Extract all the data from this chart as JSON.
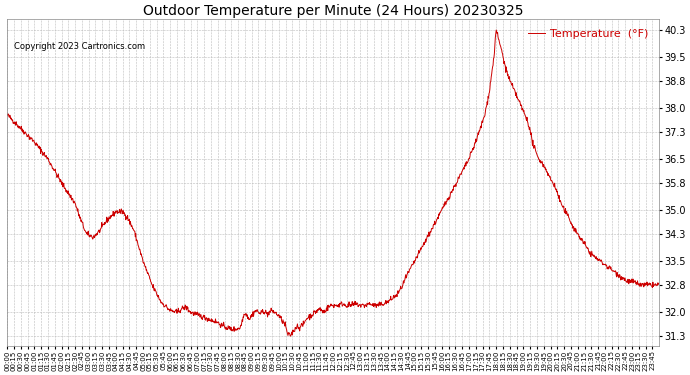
{
  "title": "Outdoor Temperature per Minute (24 Hours) 20230325",
  "copyright": "Copyright 2023 Cartronics.com",
  "legend_label": "Temperature  (°F)",
  "line_color": "#cc0000",
  "background_color": "#ffffff",
  "grid_color": "#bbbbbb",
  "yticks": [
    31.3,
    32.0,
    32.8,
    33.5,
    34.3,
    35.0,
    35.8,
    36.5,
    37.3,
    38.0,
    38.8,
    39.5,
    40.3
  ],
  "ylim": [
    31.0,
    40.6
  ],
  "xtick_interval": 15,
  "total_minutes": 1440,
  "control_points": [
    [
      0,
      37.8
    ],
    [
      30,
      37.4
    ],
    [
      60,
      37.0
    ],
    [
      90,
      36.5
    ],
    [
      120,
      35.8
    ],
    [
      150,
      35.2
    ],
    [
      160,
      34.8
    ],
    [
      175,
      34.3
    ],
    [
      190,
      34.2
    ],
    [
      205,
      34.4
    ],
    [
      220,
      34.7
    ],
    [
      240,
      34.95
    ],
    [
      255,
      34.95
    ],
    [
      265,
      34.8
    ],
    [
      280,
      34.4
    ],
    [
      300,
      33.5
    ],
    [
      320,
      32.8
    ],
    [
      340,
      32.3
    ],
    [
      360,
      32.05
    ],
    [
      375,
      32.0
    ],
    [
      385,
      32.1
    ],
    [
      395,
      32.15
    ],
    [
      405,
      32.0
    ],
    [
      415,
      31.95
    ],
    [
      425,
      31.9
    ],
    [
      435,
      31.85
    ],
    [
      445,
      31.8
    ],
    [
      455,
      31.75
    ],
    [
      465,
      31.7
    ],
    [
      475,
      31.6
    ],
    [
      485,
      31.55
    ],
    [
      495,
      31.5
    ],
    [
      505,
      31.5
    ],
    [
      515,
      31.55
    ],
    [
      520,
      31.8
    ],
    [
      525,
      32.0
    ],
    [
      530,
      31.9
    ],
    [
      535,
      31.8
    ],
    [
      540,
      31.9
    ],
    [
      545,
      32.0
    ],
    [
      550,
      32.05
    ],
    [
      555,
      32.0
    ],
    [
      560,
      31.95
    ],
    [
      565,
      32.05
    ],
    [
      570,
      32.0
    ],
    [
      575,
      31.95
    ],
    [
      580,
      32.0
    ],
    [
      585,
      32.05
    ],
    [
      590,
      32.0
    ],
    [
      595,
      31.95
    ],
    [
      600,
      31.9
    ],
    [
      605,
      31.8
    ],
    [
      610,
      31.7
    ],
    [
      615,
      31.6
    ],
    [
      618,
      31.4
    ],
    [
      620,
      31.35
    ],
    [
      625,
      31.3
    ],
    [
      630,
      31.4
    ],
    [
      635,
      31.5
    ],
    [
      640,
      31.6
    ],
    [
      645,
      31.55
    ],
    [
      650,
      31.6
    ],
    [
      655,
      31.65
    ],
    [
      660,
      31.8
    ],
    [
      665,
      31.85
    ],
    [
      670,
      31.9
    ],
    [
      675,
      31.95
    ],
    [
      680,
      32.0
    ],
    [
      685,
      32.05
    ],
    [
      690,
      32.1
    ],
    [
      695,
      32.05
    ],
    [
      700,
      32.0
    ],
    [
      705,
      32.1
    ],
    [
      710,
      32.15
    ],
    [
      715,
      32.2
    ],
    [
      720,
      32.2
    ],
    [
      730,
      32.2
    ],
    [
      740,
      32.25
    ],
    [
      750,
      32.2
    ],
    [
      760,
      32.2
    ],
    [
      770,
      32.25
    ],
    [
      780,
      32.2
    ],
    [
      790,
      32.2
    ],
    [
      800,
      32.25
    ],
    [
      810,
      32.2
    ],
    [
      820,
      32.2
    ],
    [
      830,
      32.25
    ],
    [
      840,
      32.3
    ],
    [
      850,
      32.4
    ],
    [
      860,
      32.5
    ],
    [
      870,
      32.7
    ],
    [
      880,
      33.0
    ],
    [
      900,
      33.5
    ],
    [
      920,
      34.0
    ],
    [
      940,
      34.5
    ],
    [
      960,
      35.0
    ],
    [
      980,
      35.5
    ],
    [
      1000,
      36.0
    ],
    [
      1020,
      36.5
    ],
    [
      1040,
      37.2
    ],
    [
      1055,
      37.8
    ],
    [
      1065,
      38.5
    ],
    [
      1070,
      39.0
    ],
    [
      1075,
      39.5
    ],
    [
      1078,
      40.0
    ],
    [
      1080,
      40.3
    ],
    [
      1082,
      40.2
    ],
    [
      1085,
      40.0
    ],
    [
      1090,
      39.8
    ],
    [
      1095,
      39.5
    ],
    [
      1100,
      39.2
    ],
    [
      1110,
      38.8
    ],
    [
      1120,
      38.5
    ],
    [
      1130,
      38.2
    ],
    [
      1140,
      37.9
    ],
    [
      1150,
      37.6
    ],
    [
      1155,
      37.3
    ],
    [
      1160,
      37.0
    ],
    [
      1165,
      36.8
    ],
    [
      1170,
      36.6
    ],
    [
      1175,
      36.5
    ],
    [
      1180,
      36.4
    ],
    [
      1185,
      36.3
    ],
    [
      1190,
      36.2
    ],
    [
      1200,
      35.9
    ],
    [
      1210,
      35.7
    ],
    [
      1215,
      35.5
    ],
    [
      1220,
      35.3
    ],
    [
      1230,
      35.0
    ],
    [
      1240,
      34.8
    ],
    [
      1250,
      34.5
    ],
    [
      1260,
      34.3
    ],
    [
      1270,
      34.1
    ],
    [
      1280,
      33.9
    ],
    [
      1290,
      33.7
    ],
    [
      1300,
      33.6
    ],
    [
      1310,
      33.5
    ],
    [
      1320,
      33.4
    ],
    [
      1330,
      33.3
    ],
    [
      1340,
      33.2
    ],
    [
      1350,
      33.1
    ],
    [
      1360,
      33.0
    ],
    [
      1370,
      32.9
    ],
    [
      1380,
      32.9
    ],
    [
      1390,
      32.85
    ],
    [
      1400,
      32.8
    ],
    [
      1410,
      32.8
    ],
    [
      1420,
      32.8
    ],
    [
      1430,
      32.8
    ],
    [
      1439,
      32.8
    ]
  ]
}
